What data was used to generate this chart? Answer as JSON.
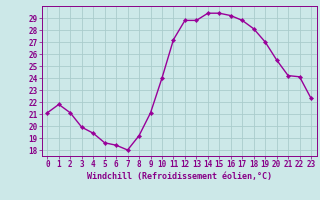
{
  "x": [
    0,
    1,
    2,
    3,
    4,
    5,
    6,
    7,
    8,
    9,
    10,
    11,
    12,
    13,
    14,
    15,
    16,
    17,
    18,
    19,
    20,
    21,
    22,
    23
  ],
  "y": [
    21.1,
    21.8,
    21.1,
    19.9,
    19.4,
    18.6,
    18.4,
    18.0,
    19.2,
    21.1,
    24.0,
    27.2,
    28.8,
    28.8,
    29.4,
    29.4,
    29.2,
    28.8,
    28.1,
    27.0,
    25.5,
    24.2,
    24.1,
    22.3
  ],
  "line_color": "#990099",
  "marker": "D",
  "marker_size": 2.2,
  "line_width": 1.0,
  "bg_color": "#cce8e8",
  "grid_color": "#aacccc",
  "tick_color": "#880088",
  "xlabel": "Windchill (Refroidissement éolien,°C)",
  "xlabel_color": "#880088",
  "xlabel_fontsize": 6.0,
  "ylabel_ticks": [
    18,
    19,
    20,
    21,
    22,
    23,
    24,
    25,
    26,
    27,
    28,
    29
  ],
  "xlim": [
    -0.5,
    23.5
  ],
  "ylim": [
    17.5,
    30.0
  ],
  "tick_fontsize": 5.5
}
